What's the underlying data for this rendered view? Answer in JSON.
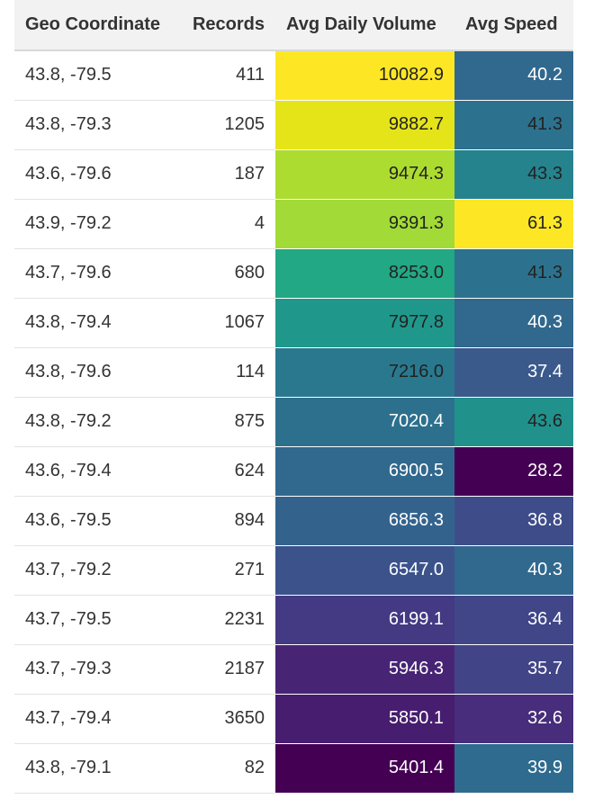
{
  "table": {
    "headers": [
      "Geo Coordinate",
      "Records",
      "Avg Daily Volume",
      "Avg Speed"
    ],
    "rows": [
      {
        "geo": "43.8, -79.5",
        "records": "411",
        "volume": "10082.9",
        "speed": "40.2",
        "volume_bg": "#fde725",
        "volume_fg": "#222222",
        "speed_bg": "#31688e",
        "speed_fg": "#ffffff"
      },
      {
        "geo": "43.8, -79.3",
        "records": "1205",
        "volume": "9882.7",
        "speed": "41.3",
        "volume_bg": "#e5e419",
        "volume_fg": "#222222",
        "speed_bg": "#2c728e",
        "speed_fg": "#222222"
      },
      {
        "geo": "43.6, -79.6",
        "records": "187",
        "volume": "9474.3",
        "speed": "43.3",
        "volume_bg": "#addc30",
        "volume_fg": "#222222",
        "speed_bg": "#25838e",
        "speed_fg": "#222222"
      },
      {
        "geo": "43.9, -79.2",
        "records": "4",
        "volume": "9391.3",
        "speed": "61.3",
        "volume_bg": "#a2da37",
        "volume_fg": "#222222",
        "speed_bg": "#fde725",
        "speed_fg": "#222222"
      },
      {
        "geo": "43.7, -79.6",
        "records": "680",
        "volume": "8253.0",
        "speed": "41.3",
        "volume_bg": "#22a884",
        "volume_fg": "#222222",
        "speed_bg": "#2c728e",
        "speed_fg": "#222222"
      },
      {
        "geo": "43.8, -79.4",
        "records": "1067",
        "volume": "7977.8",
        "speed": "40.3",
        "volume_bg": "#1f988b",
        "volume_fg": "#222222",
        "speed_bg": "#31688e",
        "speed_fg": "#ffffff"
      },
      {
        "geo": "43.8, -79.6",
        "records": "114",
        "volume": "7216.0",
        "speed": "37.4",
        "volume_bg": "#2a788e",
        "volume_fg": "#222222",
        "speed_bg": "#3b5a8c",
        "speed_fg": "#ffffff"
      },
      {
        "geo": "43.8, -79.2",
        "records": "875",
        "volume": "7020.4",
        "speed": "43.6",
        "volume_bg": "#2d708e",
        "volume_fg": "#ffffff",
        "speed_bg": "#21918c",
        "speed_fg": "#222222"
      },
      {
        "geo": "43.6, -79.4",
        "records": "624",
        "volume": "6900.5",
        "speed": "28.2",
        "volume_bg": "#31688e",
        "volume_fg": "#ffffff",
        "speed_bg": "#440154",
        "speed_fg": "#ffffff"
      },
      {
        "geo": "43.6, -79.5",
        "records": "894",
        "volume": "6856.3",
        "speed": "36.8",
        "volume_bg": "#33638d",
        "volume_fg": "#ffffff",
        "speed_bg": "#3e4c8a",
        "speed_fg": "#ffffff"
      },
      {
        "geo": "43.7, -79.2",
        "records": "271",
        "volume": "6547.0",
        "speed": "40.3",
        "volume_bg": "#3b528b",
        "volume_fg": "#ffffff",
        "speed_bg": "#31688e",
        "speed_fg": "#ffffff"
      },
      {
        "geo": "43.7, -79.5",
        "records": "2231",
        "volume": "6199.1",
        "speed": "36.4",
        "volume_bg": "#443983",
        "volume_fg": "#ffffff",
        "speed_bg": "#404688",
        "speed_fg": "#ffffff"
      },
      {
        "geo": "43.7, -79.3",
        "records": "2187",
        "volume": "5946.3",
        "speed": "35.7",
        "volume_bg": "#482475",
        "volume_fg": "#ffffff",
        "speed_bg": "#414487",
        "speed_fg": "#ffffff"
      },
      {
        "geo": "43.7, -79.4",
        "records": "3650",
        "volume": "5850.1",
        "speed": "32.6",
        "volume_bg": "#471d6f",
        "volume_fg": "#ffffff",
        "speed_bg": "#472d7b",
        "speed_fg": "#ffffff"
      },
      {
        "geo": "43.8, -79.1",
        "records": "82",
        "volume": "5401.4",
        "speed": "39.9",
        "volume_bg": "#440154",
        "volume_fg": "#ffffff",
        "speed_bg": "#2f6b8e",
        "speed_fg": "#ffffff"
      }
    ]
  }
}
